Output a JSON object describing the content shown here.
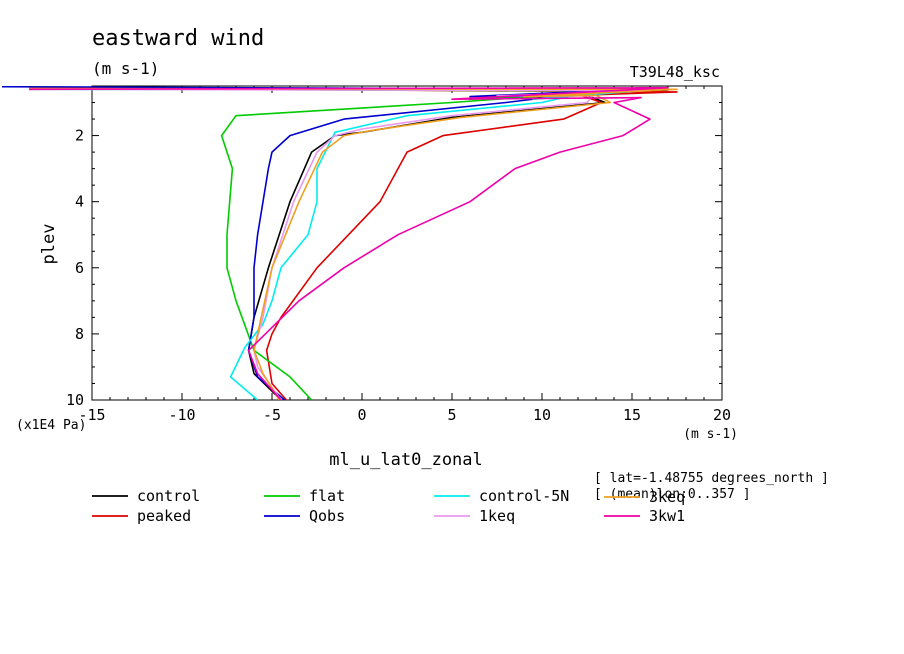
{
  "header": {
    "title": "eastward wind",
    "units": "(m s-1)",
    "run_id": "T39L48_ksc"
  },
  "axis_labels": {
    "x_units": "(m s-1)",
    "y_scale": "(x1E4 Pa)",
    "x_title": "ml_u_lat0_zonal",
    "y_title": "plev"
  },
  "info": {
    "line1": "[ lat=-1.48755 degrees_north ]",
    "line2": "[ (mean)lon:0..357 ]"
  },
  "chart_data": {
    "type": "line",
    "title": "eastward wind",
    "xlabel": "ml_u_lat0_zonal",
    "ylabel": "plev",
    "xlim": [
      -15,
      20
    ],
    "ylim": [
      10,
      0.5
    ],
    "x_ticks": [
      -15,
      -10,
      -5,
      0,
      5,
      10,
      15,
      20
    ],
    "y_ticks": [
      2,
      4,
      6,
      8,
      10
    ],
    "x_tick_labels": [
      "-15",
      "-10",
      "-5",
      "0",
      "5",
      "10",
      "15",
      "20"
    ],
    "y_tick_labels": [
      "2",
      "4",
      "6",
      "8",
      "10"
    ],
    "grid": false,
    "legend_position": "bottom",
    "series": [
      {
        "name": "control",
        "color": "#000000",
        "points": [
          [
            -18.5,
            0.58
          ],
          [
            17.0,
            0.62
          ],
          [
            8.0,
            0.85
          ],
          [
            12.5,
            0.78
          ],
          [
            13.5,
            1.0
          ],
          [
            5.0,
            1.45
          ],
          [
            0.0,
            1.9
          ],
          [
            -1.5,
            2.0
          ],
          [
            -2.8,
            2.5
          ],
          [
            -4.0,
            4.0
          ],
          [
            -5.2,
            6.0
          ],
          [
            -6.0,
            7.5
          ],
          [
            -6.3,
            8.5
          ],
          [
            -6.0,
            9.2
          ],
          [
            -4.5,
            10.0
          ]
        ]
      },
      {
        "name": "peaked",
        "color": "#dd0000",
        "points": [
          [
            -18.5,
            0.56
          ],
          [
            17.5,
            0.68
          ],
          [
            10.0,
            0.82
          ],
          [
            12.0,
            0.75
          ],
          [
            13.3,
            1.0
          ],
          [
            11.2,
            1.5
          ],
          [
            4.5,
            2.0
          ],
          [
            2.5,
            2.5
          ],
          [
            1.0,
            4.0
          ],
          [
            -2.5,
            6.0
          ],
          [
            -4.5,
            7.5
          ],
          [
            -5.0,
            8.0
          ],
          [
            -5.3,
            8.5
          ],
          [
            -5.0,
            9.5
          ],
          [
            -4.2,
            10.0
          ]
        ]
      },
      {
        "name": "flat",
        "color": "#00cc00",
        "points": [
          [
            -18.5,
            0.58
          ],
          [
            14.0,
            0.65
          ],
          [
            6.0,
            0.9
          ],
          [
            10.0,
            0.8
          ],
          [
            5.0,
            1.0
          ],
          [
            -7.0,
            1.4
          ],
          [
            -7.8,
            2.0
          ],
          [
            -7.2,
            3.0
          ],
          [
            -7.5,
            5.0
          ],
          [
            -7.5,
            6.0
          ],
          [
            -7.0,
            7.0
          ],
          [
            -6.0,
            8.5
          ],
          [
            -4.0,
            9.3
          ],
          [
            -2.8,
            10.0
          ]
        ]
      },
      {
        "name": "Qobs",
        "color": "#0000cc",
        "points": [
          [
            -20,
            0.52
          ],
          [
            15.0,
            0.6
          ],
          [
            6.0,
            0.82
          ],
          [
            11.0,
            0.8
          ],
          [
            8.0,
            1.0
          ],
          [
            -1.0,
            1.5
          ],
          [
            -4.0,
            2.0
          ],
          [
            -5.0,
            2.5
          ],
          [
            -5.2,
            3.0
          ],
          [
            -5.5,
            4.0
          ],
          [
            -5.8,
            5.0
          ],
          [
            -6.0,
            6.0
          ],
          [
            -6.0,
            7.0
          ],
          [
            -6.0,
            7.5
          ],
          [
            -6.3,
            8.5
          ],
          [
            -5.8,
            9.3
          ],
          [
            -4.3,
            10.0
          ]
        ]
      },
      {
        "name": "control-5N",
        "color": "#00eeee",
        "points": [
          [
            -18.5,
            0.6
          ],
          [
            16.0,
            0.62
          ],
          [
            9.5,
            0.9
          ],
          [
            12.0,
            0.75
          ],
          [
            10.0,
            1.0
          ],
          [
            2.5,
            1.4
          ],
          [
            -1.5,
            1.9
          ],
          [
            -2.5,
            3.0
          ],
          [
            -2.5,
            4.0
          ],
          [
            -3.0,
            5.0
          ],
          [
            -4.5,
            6.0
          ],
          [
            -5.0,
            7.0
          ],
          [
            -5.5,
            7.7
          ],
          [
            -6.5,
            8.4
          ],
          [
            -7.3,
            9.3
          ],
          [
            -5.8,
            10.0
          ]
        ]
      },
      {
        "name": "1keq",
        "color": "#e999ee",
        "points": [
          [
            -18.5,
            0.6
          ],
          [
            16.0,
            0.64
          ],
          [
            7.5,
            0.8
          ],
          [
            12.8,
            0.8
          ],
          [
            12.5,
            1.0
          ],
          [
            5.0,
            1.4
          ],
          [
            0.0,
            1.8
          ],
          [
            -1.5,
            2.0
          ],
          [
            -2.5,
            2.5
          ],
          [
            -3.8,
            4.0
          ],
          [
            -5.0,
            6.0
          ],
          [
            -5.5,
            7.5
          ],
          [
            -6.0,
            8.5
          ],
          [
            -5.8,
            9.0
          ],
          [
            -4.5,
            10.0
          ]
        ]
      },
      {
        "name": "3keq",
        "color": "#f0a020",
        "points": [
          [
            -18.5,
            0.58
          ],
          [
            17.5,
            0.6
          ],
          [
            9.0,
            0.82
          ],
          [
            13.0,
            0.78
          ],
          [
            13.8,
            1.0
          ],
          [
            5.5,
            1.45
          ],
          [
            0.5,
            1.85
          ],
          [
            -1.0,
            2.0
          ],
          [
            -2.2,
            2.5
          ],
          [
            -3.5,
            4.0
          ],
          [
            -5.0,
            6.0
          ],
          [
            -5.6,
            7.5
          ],
          [
            -6.0,
            8.5
          ],
          [
            -5.5,
            9.2
          ],
          [
            -4.6,
            10.0
          ]
        ]
      },
      {
        "name": "3kw1",
        "color": "#ee00aa",
        "points": [
          [
            -18.5,
            0.6
          ],
          [
            17.0,
            0.55
          ],
          [
            5.0,
            0.9
          ],
          [
            15.5,
            0.85
          ],
          [
            14.0,
            1.0
          ],
          [
            16.0,
            1.5
          ],
          [
            14.5,
            2.0
          ],
          [
            11.0,
            2.5
          ],
          [
            8.5,
            3.0
          ],
          [
            6.0,
            4.0
          ],
          [
            2.0,
            5.0
          ],
          [
            -1.0,
            6.0
          ],
          [
            -3.5,
            7.0
          ],
          [
            -6.3,
            8.5
          ],
          [
            -5.8,
            9.2
          ],
          [
            -4.5,
            10.0
          ]
        ]
      }
    ]
  }
}
